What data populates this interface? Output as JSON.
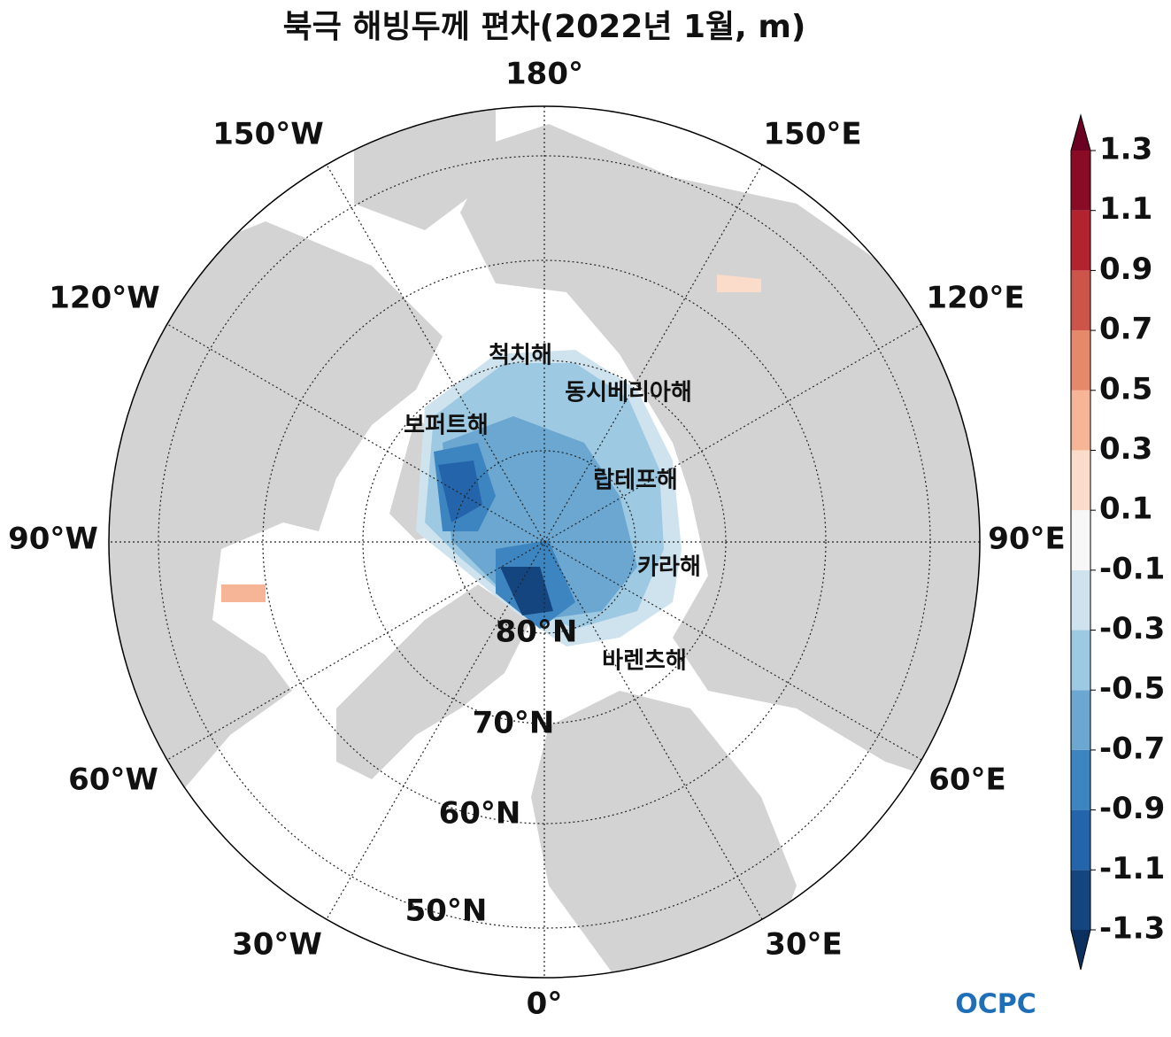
{
  "title": "북극 해빙두께 편차(2022년 1월, m)",
  "longitude_labels": [
    "180°",
    "150°E",
    "120°E",
    "90°E",
    "60°E",
    "30°E",
    "0°",
    "30°W",
    "60°W",
    "90°W",
    "120°W",
    "150°W"
  ],
  "latitude_labels": [
    "80°N",
    "70°N",
    "60°N",
    "50°N"
  ],
  "sea_labels": [
    "척치해",
    "동시베리아해",
    "보퍼트해",
    "랍테프해",
    "카라해",
    "바렌츠해"
  ],
  "colorbar": {
    "ticks": [
      1.3,
      1.1,
      0.9,
      0.7,
      0.5,
      0.3,
      0.1,
      -0.1,
      -0.3,
      -0.5,
      -0.7,
      -0.9,
      -1.1,
      -1.3
    ],
    "colors": [
      "#15457f",
      "#2464ab",
      "#3d85c0",
      "#6ba7d0",
      "#9ec9e2",
      "#cfe3ef",
      "#f7f7f7",
      "#fbdccb",
      "#f5b596",
      "#e6886a",
      "#cc5449",
      "#b2222f",
      "#8a0b25"
    ],
    "under_color": "#0b2f5e",
    "over_color": "#6a0120"
  },
  "logo": "OCPC"
}
